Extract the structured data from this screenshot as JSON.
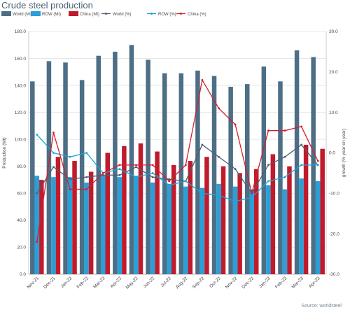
{
  "title": "Crude steel production",
  "source": "Source: worldsteel",
  "colors": {
    "world_bar": "#4c6f86",
    "row_bar": "#2a9fd8",
    "china_bar": "#c01b2c",
    "world_line": "#4f5f70",
    "row_line": "#1ba6d6",
    "china_line": "#d21f2f",
    "grid": "#e3e3e3"
  },
  "chart_data": {
    "type": "bar+line",
    "title": "Crude steel production",
    "ylabel": "Production (Mt)",
    "y2label": "growth (% year on year)",
    "ylim": [
      0,
      180
    ],
    "y2lim": [
      -30,
      30
    ],
    "yticks": [
      "0.0",
      "20.0",
      "40.0",
      "60.0",
      "80.0",
      "100.0",
      "120.0",
      "140.0",
      "160.0",
      "180.0"
    ],
    "y2ticks": [
      "-30.0",
      "-20.0",
      "-10.0",
      "0.0",
      "10.0",
      "20.0",
      "30.0"
    ],
    "grid": true,
    "legend_position": "top",
    "categories": [
      "Nov-21",
      "Dec-21",
      "Jan-22",
      "Feb-22",
      "Mar-22",
      "Apr-22",
      "May-22",
      "Jun-22",
      "Jul-22",
      "Aug-22",
      "Sep-22",
      "Oct-22",
      "Nov-22",
      "Dec-22",
      "Jan-23",
      "Feb-23",
      "Mar-23",
      "Apr-23"
    ],
    "bar_series": [
      {
        "name": "World (Mt)",
        "values": [
          143,
          158,
          157,
          144,
          162,
          165,
          170,
          159,
          149,
          149,
          151,
          147,
          139,
          141,
          154,
          143,
          166,
          161
        ]
      },
      {
        "name": "ROW (Mt)",
        "values": [
          73,
          72,
          72,
          68,
          73,
          72,
          73,
          68,
          67,
          65,
          64,
          67,
          65,
          63,
          66,
          63,
          71,
          69
        ]
      },
      {
        "name": "China (Mt)",
        "values": [
          70,
          87,
          84,
          76,
          90,
          95,
          97,
          91,
          81,
          84,
          87,
          80,
          75,
          78,
          89,
          80,
          96,
          93
        ]
      }
    ],
    "line_series": [
      {
        "name": "World (%)",
        "values": [
          -10,
          -3.5,
          -6.5,
          -6,
          -5.5,
          -5.5,
          -3.5,
          -6,
          -6.5,
          -7,
          2,
          -1,
          -4,
          -10,
          -3,
          -1,
          2,
          -3
        ]
      },
      {
        "name": "ROW (%)",
        "values": [
          4.5,
          0,
          -1,
          0,
          -5,
          -4,
          -6,
          -5,
          -8,
          -7,
          -10,
          -10.5,
          -12,
          -11,
          -7,
          -6,
          -3,
          -3
        ]
      },
      {
        "name": "China (%)",
        "values": [
          -22,
          5,
          -9,
          -9,
          -5,
          -3,
          -3,
          -3,
          -7,
          -3,
          18,
          11,
          7,
          -10,
          5.5,
          5.5,
          6.5,
          -2
        ]
      }
    ]
  }
}
